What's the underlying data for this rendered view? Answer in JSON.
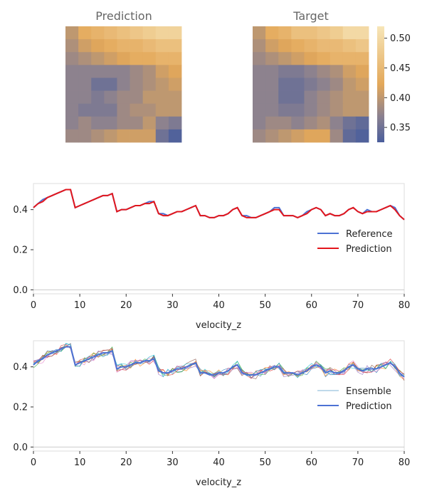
{
  "chart_data": [
    {
      "type": "heatmap",
      "title": "Prediction",
      "rows": 9,
      "cols": 9,
      "values": [
        [
          0.4,
          0.43,
          0.44,
          0.45,
          0.46,
          0.47,
          0.48,
          0.49,
          0.49
        ],
        [
          0.39,
          0.41,
          0.42,
          0.43,
          0.44,
          0.44,
          0.45,
          0.46,
          0.46
        ],
        [
          0.38,
          0.39,
          0.4,
          0.41,
          0.42,
          0.43,
          0.43,
          0.44,
          0.44
        ],
        [
          0.37,
          0.37,
          0.37,
          0.37,
          0.37,
          0.38,
          0.39,
          0.41,
          0.42
        ],
        [
          0.37,
          0.37,
          0.35,
          0.35,
          0.37,
          0.38,
          0.39,
          0.4,
          0.41
        ],
        [
          0.37,
          0.37,
          0.36,
          0.37,
          0.38,
          0.38,
          0.4,
          0.4,
          0.4
        ],
        [
          0.37,
          0.36,
          0.36,
          0.36,
          0.38,
          0.39,
          0.39,
          0.4,
          0.4
        ],
        [
          0.37,
          0.38,
          0.37,
          0.37,
          0.38,
          0.38,
          0.4,
          0.37,
          0.36
        ],
        [
          0.38,
          0.38,
          0.39,
          0.4,
          0.41,
          0.41,
          0.41,
          0.35,
          0.33
        ]
      ]
    },
    {
      "type": "heatmap",
      "title": "Target",
      "rows": 9,
      "cols": 9,
      "values": [
        [
          0.4,
          0.43,
          0.44,
          0.46,
          0.46,
          0.47,
          0.48,
          0.5,
          0.5
        ],
        [
          0.39,
          0.41,
          0.42,
          0.43,
          0.44,
          0.45,
          0.45,
          0.46,
          0.47
        ],
        [
          0.38,
          0.39,
          0.4,
          0.41,
          0.42,
          0.43,
          0.44,
          0.44,
          0.44
        ],
        [
          0.37,
          0.37,
          0.36,
          0.36,
          0.37,
          0.38,
          0.39,
          0.41,
          0.42
        ],
        [
          0.37,
          0.37,
          0.35,
          0.35,
          0.36,
          0.37,
          0.38,
          0.4,
          0.41
        ],
        [
          0.37,
          0.37,
          0.35,
          0.35,
          0.37,
          0.38,
          0.39,
          0.4,
          0.4
        ],
        [
          0.37,
          0.37,
          0.36,
          0.36,
          0.37,
          0.38,
          0.39,
          0.4,
          0.4
        ],
        [
          0.37,
          0.38,
          0.38,
          0.37,
          0.38,
          0.39,
          0.37,
          0.35,
          0.34
        ],
        [
          0.38,
          0.39,
          0.4,
          0.41,
          0.42,
          0.42,
          0.38,
          0.34,
          0.33
        ]
      ],
      "colorbar": {
        "min": 0.325,
        "max": 0.52,
        "ticks": [
          "0.35",
          "0.40",
          "0.45",
          "0.50"
        ]
      }
    },
    {
      "type": "line",
      "xlabel": "velocity_z",
      "ylabel": "",
      "xlim": [
        0,
        80
      ],
      "ylim": [
        -0.02,
        0.53
      ],
      "xticks": [
        "0",
        "10",
        "20",
        "30",
        "40",
        "50",
        "60",
        "70",
        "80"
      ],
      "yticks": [
        "0.0",
        "0.2",
        "0.4"
      ],
      "legend_position": "right",
      "series": [
        {
          "name": "Reference",
          "color": "#4c72d4",
          "values": [
            0.41,
            0.43,
            0.45,
            0.46,
            0.47,
            0.48,
            0.49,
            0.5,
            0.5,
            0.41,
            0.42,
            0.43,
            0.44,
            0.45,
            0.46,
            0.47,
            0.47,
            0.48,
            0.39,
            0.4,
            0.4,
            0.41,
            0.42,
            0.42,
            0.43,
            0.44,
            0.44,
            0.38,
            0.38,
            0.37,
            0.38,
            0.39,
            0.39,
            0.4,
            0.41,
            0.42,
            0.37,
            0.37,
            0.36,
            0.36,
            0.37,
            0.37,
            0.38,
            0.4,
            0.41,
            0.37,
            0.37,
            0.36,
            0.36,
            0.37,
            0.38,
            0.39,
            0.41,
            0.41,
            0.37,
            0.37,
            0.37,
            0.36,
            0.37,
            0.39,
            0.4,
            0.41,
            0.4,
            0.37,
            0.38,
            0.37,
            0.37,
            0.38,
            0.4,
            0.41,
            0.39,
            0.38,
            0.4,
            0.39,
            0.39,
            0.4,
            0.41,
            0.42,
            0.41,
            0.37,
            0.35
          ]
        },
        {
          "name": "Prediction",
          "color": "#e3161c",
          "values": [
            0.41,
            0.43,
            0.44,
            0.46,
            0.47,
            0.48,
            0.49,
            0.5,
            0.5,
            0.41,
            0.42,
            0.43,
            0.44,
            0.45,
            0.46,
            0.47,
            0.47,
            0.48,
            0.39,
            0.4,
            0.4,
            0.41,
            0.42,
            0.42,
            0.43,
            0.43,
            0.44,
            0.38,
            0.37,
            0.37,
            0.38,
            0.39,
            0.39,
            0.4,
            0.41,
            0.42,
            0.37,
            0.37,
            0.36,
            0.36,
            0.37,
            0.37,
            0.38,
            0.4,
            0.41,
            0.37,
            0.36,
            0.36,
            0.36,
            0.37,
            0.38,
            0.39,
            0.4,
            0.4,
            0.37,
            0.37,
            0.37,
            0.36,
            0.37,
            0.38,
            0.4,
            0.41,
            0.4,
            0.37,
            0.38,
            0.37,
            0.37,
            0.38,
            0.4,
            0.41,
            0.39,
            0.38,
            0.39,
            0.39,
            0.39,
            0.4,
            0.41,
            0.42,
            0.4,
            0.37,
            0.35
          ]
        }
      ]
    },
    {
      "type": "line",
      "xlabel": "velocity_z",
      "ylabel": "",
      "xlim": [
        0,
        80
      ],
      "ylim": [
        -0.02,
        0.53
      ],
      "xticks": [
        "0",
        "10",
        "20",
        "30",
        "40",
        "50",
        "60",
        "70",
        "80"
      ],
      "yticks": [
        "0.0",
        "0.2",
        "0.4"
      ],
      "legend_position": "right",
      "series": [
        {
          "name": "Ensemble",
          "color": "#7fb3d5",
          "values": []
        },
        {
          "name": "Prediction",
          "color": "#4c72d4",
          "values": [
            0.41,
            0.43,
            0.44,
            0.46,
            0.47,
            0.48,
            0.49,
            0.5,
            0.5,
            0.41,
            0.42,
            0.43,
            0.44,
            0.45,
            0.46,
            0.47,
            0.47,
            0.48,
            0.39,
            0.4,
            0.4,
            0.41,
            0.42,
            0.42,
            0.43,
            0.43,
            0.44,
            0.38,
            0.37,
            0.37,
            0.38,
            0.39,
            0.39,
            0.4,
            0.41,
            0.42,
            0.37,
            0.37,
            0.36,
            0.36,
            0.37,
            0.37,
            0.38,
            0.4,
            0.41,
            0.37,
            0.36,
            0.36,
            0.36,
            0.37,
            0.38,
            0.39,
            0.4,
            0.4,
            0.37,
            0.37,
            0.37,
            0.36,
            0.37,
            0.38,
            0.4,
            0.41,
            0.4,
            0.37,
            0.38,
            0.37,
            0.37,
            0.38,
            0.4,
            0.41,
            0.39,
            0.38,
            0.39,
            0.39,
            0.39,
            0.4,
            0.41,
            0.42,
            0.4,
            0.37,
            0.35
          ]
        }
      ],
      "ensemble_members": 8,
      "ensemble_colors": [
        "#1f77b4",
        "#ff7f0e",
        "#2ca02c",
        "#d62728",
        "#9467bd",
        "#8c564b",
        "#e377c2",
        "#17becf"
      ]
    }
  ]
}
